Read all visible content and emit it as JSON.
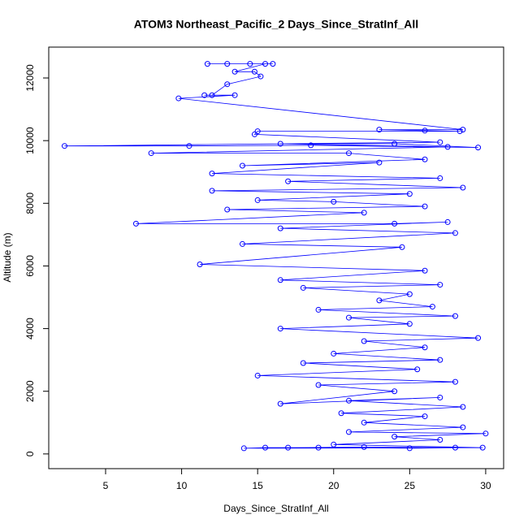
{
  "chart_data": {
    "type": "line",
    "title": "ATOM3 Northeast_Pacific_2 Days_Since_StratInf_All",
    "x_label": "Days_Since_StratInf_All",
    "y_label": "Altitude (m)",
    "color": "#0000ff",
    "xlim": [
      1.26,
      31.18
    ],
    "ylim": [
      -470,
      12985
    ],
    "xticks": [
      5,
      10,
      15,
      20,
      25,
      30
    ],
    "yticks": [
      0,
      2000,
      4000,
      6000,
      8000,
      10000,
      12000
    ],
    "series": [
      {
        "name": "Days_Since_StratInf_All",
        "x": [
          11.7,
          13,
          14.5,
          16,
          15.5,
          13.5,
          14.8,
          15.2,
          13,
          12,
          11.5,
          13.5,
          9.8,
          28.5,
          23,
          26,
          28.3,
          15,
          14.8,
          27,
          2.3,
          10.5,
          18.5,
          29.5,
          24,
          16.5,
          27.5,
          8,
          21,
          26,
          14,
          23,
          12,
          27,
          17,
          28.5,
          12,
          25,
          15,
          20,
          26,
          13,
          22,
          7,
          24,
          27.5,
          16.5,
          28,
          14,
          24.5,
          11.2,
          26,
          16.5,
          27,
          18,
          25,
          23,
          26.5,
          19,
          28,
          21,
          25,
          16.5,
          29.5,
          22,
          26,
          20,
          27,
          18,
          25.5,
          15,
          28,
          19,
          24,
          16.5,
          27,
          21,
          28.5,
          20.5,
          26,
          22,
          28.5,
          21,
          30,
          24,
          27,
          20,
          29.8,
          14.1,
          15.5,
          17,
          22,
          28,
          25,
          19
        ],
        "values": [
          12450,
          12450,
          12450,
          12450,
          12450,
          12200,
          12200,
          12050,
          11800,
          11450,
          11450,
          11450,
          11350,
          10350,
          10350,
          10320,
          10300,
          10300,
          10200,
          9950,
          9830,
          9830,
          9850,
          9780,
          9900,
          9900,
          9800,
          9600,
          9600,
          9400,
          9200,
          9300,
          8950,
          8800,
          8700,
          8500,
          8400,
          8300,
          8100,
          8050,
          7900,
          7800,
          7700,
          7350,
          7350,
          7400,
          7200,
          7050,
          6700,
          6600,
          6050,
          5850,
          5550,
          5400,
          5300,
          5100,
          4900,
          4700,
          4600,
          4400,
          4350,
          4150,
          4000,
          3700,
          3600,
          3400,
          3200,
          3000,
          2900,
          2700,
          2500,
          2300,
          2200,
          2000,
          1600,
          1800,
          1700,
          1500,
          1300,
          1200,
          1000,
          850,
          700,
          650,
          550,
          450,
          300,
          200,
          180,
          200,
          200,
          220,
          200,
          180,
          200
        ]
      }
    ]
  }
}
